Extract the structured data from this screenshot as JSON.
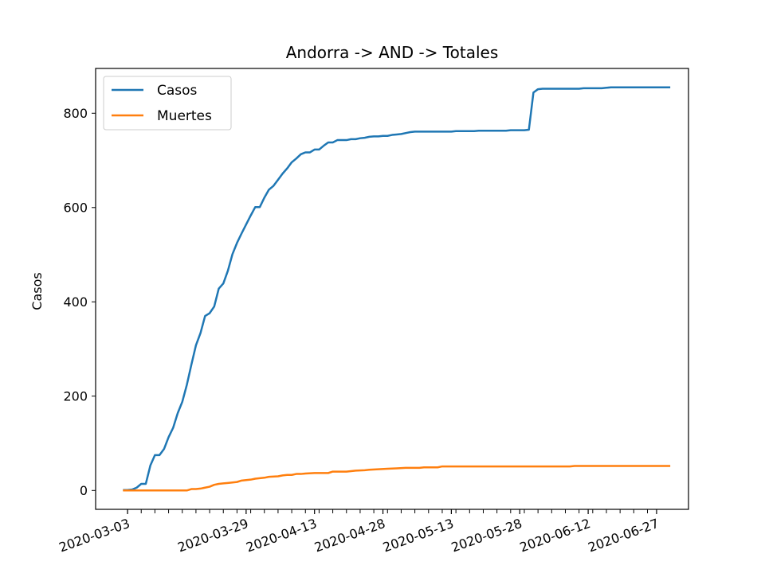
{
  "chart_data": {
    "type": "line",
    "title": "Andorra -> AND -> Totales",
    "xlabel": "",
    "ylabel": "Casos",
    "ylim": [
      -40,
      895
    ],
    "yticks": [
      0,
      200,
      400,
      600,
      800
    ],
    "xlim": [
      "2020-02-25",
      "2020-07-04"
    ],
    "xtick_labels": [
      "2020-03-03",
      "2020-03-29",
      "2020-04-13",
      "2020-04-28",
      "2020-05-13",
      "2020-05-28",
      "2020-06-12",
      "2020-06-27"
    ],
    "legend_position": "upper-left",
    "grid": false,
    "series": [
      {
        "name": "Casos",
        "color": "#1f77b4",
        "points": [
          [
            "2020-03-02",
            1
          ],
          [
            "2020-03-03",
            1
          ],
          [
            "2020-03-04",
            2
          ],
          [
            "2020-03-05",
            6
          ],
          [
            "2020-03-06",
            14
          ],
          [
            "2020-03-07",
            14
          ],
          [
            "2020-03-08",
            53
          ],
          [
            "2020-03-09",
            75
          ],
          [
            "2020-03-10",
            75
          ],
          [
            "2020-03-11",
            88
          ],
          [
            "2020-03-12",
            113
          ],
          [
            "2020-03-13",
            133
          ],
          [
            "2020-03-14",
            164
          ],
          [
            "2020-03-15",
            188
          ],
          [
            "2020-03-16",
            224
          ],
          [
            "2020-03-17",
            267
          ],
          [
            "2020-03-18",
            308
          ],
          [
            "2020-03-19",
            334
          ],
          [
            "2020-03-20",
            370
          ],
          [
            "2020-03-21",
            376
          ],
          [
            "2020-03-22",
            390
          ],
          [
            "2020-03-23",
            428
          ],
          [
            "2020-03-24",
            439
          ],
          [
            "2020-03-25",
            466
          ],
          [
            "2020-03-26",
            501
          ],
          [
            "2020-03-27",
            525
          ],
          [
            "2020-03-28",
            545
          ],
          [
            "2020-03-29",
            564
          ],
          [
            "2020-03-30",
            583
          ],
          [
            "2020-03-31",
            601
          ],
          [
            "2020-04-01",
            601
          ],
          [
            "2020-04-02",
            621
          ],
          [
            "2020-04-03",
            638
          ],
          [
            "2020-04-04",
            646
          ],
          [
            "2020-04-05",
            659
          ],
          [
            "2020-04-06",
            672
          ],
          [
            "2020-04-07",
            683
          ],
          [
            "2020-04-08",
            696
          ],
          [
            "2020-04-09",
            704
          ],
          [
            "2020-04-10",
            713
          ],
          [
            "2020-04-11",
            717
          ],
          [
            "2020-04-12",
            717
          ],
          [
            "2020-04-13",
            723
          ],
          [
            "2020-04-14",
            723
          ],
          [
            "2020-04-15",
            731
          ],
          [
            "2020-04-16",
            738
          ],
          [
            "2020-04-17",
            738
          ],
          [
            "2020-04-18",
            743
          ],
          [
            "2020-04-19",
            743
          ],
          [
            "2020-04-20",
            743
          ],
          [
            "2020-04-21",
            745
          ],
          [
            "2020-04-22",
            745
          ],
          [
            "2020-04-23",
            747
          ],
          [
            "2020-04-24",
            748
          ],
          [
            "2020-04-25",
            750
          ],
          [
            "2020-04-26",
            751
          ],
          [
            "2020-04-27",
            751
          ],
          [
            "2020-04-28",
            752
          ],
          [
            "2020-04-29",
            752
          ],
          [
            "2020-04-30",
            754
          ],
          [
            "2020-05-01",
            755
          ],
          [
            "2020-05-02",
            756
          ],
          [
            "2020-05-03",
            758
          ],
          [
            "2020-05-04",
            760
          ],
          [
            "2020-05-05",
            761
          ],
          [
            "2020-05-06",
            761
          ],
          [
            "2020-05-10",
            761
          ],
          [
            "2020-05-13",
            761
          ],
          [
            "2020-05-14",
            762
          ],
          [
            "2020-05-18",
            762
          ],
          [
            "2020-05-19",
            763
          ],
          [
            "2020-05-25",
            763
          ],
          [
            "2020-05-26",
            764
          ],
          [
            "2020-05-29",
            764
          ],
          [
            "2020-05-30",
            765
          ],
          [
            "2020-05-31",
            844
          ],
          [
            "2020-06-01",
            851
          ],
          [
            "2020-06-02",
            852
          ],
          [
            "2020-06-10",
            852
          ],
          [
            "2020-06-11",
            853
          ],
          [
            "2020-06-15",
            853
          ],
          [
            "2020-06-16",
            854
          ],
          [
            "2020-06-17",
            855
          ],
          [
            "2020-06-30",
            855
          ]
        ]
      },
      {
        "name": "Muertes",
        "color": "#ff7f0e",
        "points": [
          [
            "2020-03-02",
            0
          ],
          [
            "2020-03-16",
            0
          ],
          [
            "2020-03-17",
            3
          ],
          [
            "2020-03-18",
            3
          ],
          [
            "2020-03-19",
            4
          ],
          [
            "2020-03-20",
            6
          ],
          [
            "2020-03-21",
            8
          ],
          [
            "2020-03-22",
            12
          ],
          [
            "2020-03-23",
            14
          ],
          [
            "2020-03-24",
            15
          ],
          [
            "2020-03-25",
            16
          ],
          [
            "2020-03-26",
            17
          ],
          [
            "2020-03-27",
            18
          ],
          [
            "2020-03-28",
            21
          ],
          [
            "2020-03-29",
            22
          ],
          [
            "2020-03-30",
            23
          ],
          [
            "2020-03-31",
            25
          ],
          [
            "2020-04-01",
            26
          ],
          [
            "2020-04-02",
            27
          ],
          [
            "2020-04-03",
            29
          ],
          [
            "2020-04-05",
            30
          ],
          [
            "2020-04-06",
            32
          ],
          [
            "2020-04-07",
            33
          ],
          [
            "2020-04-08",
            33
          ],
          [
            "2020-04-09",
            35
          ],
          [
            "2020-04-10",
            35
          ],
          [
            "2020-04-11",
            36
          ],
          [
            "2020-04-13",
            37
          ],
          [
            "2020-04-16",
            37
          ],
          [
            "2020-04-17",
            40
          ],
          [
            "2020-04-20",
            40
          ],
          [
            "2020-04-21",
            41
          ],
          [
            "2020-04-22",
            42
          ],
          [
            "2020-04-24",
            43
          ],
          [
            "2020-04-25",
            44
          ],
          [
            "2020-04-27",
            45
          ],
          [
            "2020-04-29",
            46
          ],
          [
            "2020-05-01",
            47
          ],
          [
            "2020-05-03",
            48
          ],
          [
            "2020-05-06",
            48
          ],
          [
            "2020-05-07",
            49
          ],
          [
            "2020-05-10",
            49
          ],
          [
            "2020-05-11",
            51
          ],
          [
            "2020-05-20",
            51
          ],
          [
            "2020-06-08",
            51
          ],
          [
            "2020-06-09",
            52
          ],
          [
            "2020-06-30",
            52
          ]
        ]
      }
    ]
  }
}
